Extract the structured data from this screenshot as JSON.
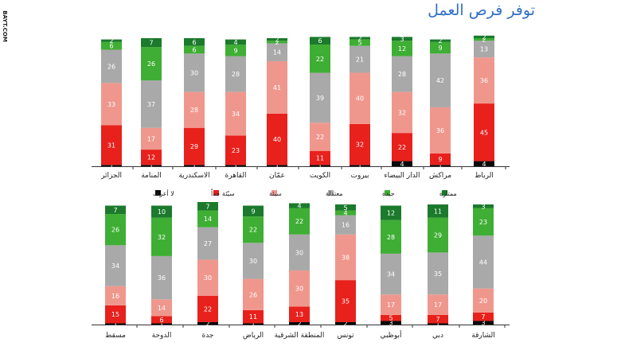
{
  "title": "توفر فرص العمل",
  "watermark": "BAYT.COM",
  "colors": {
    "dont_know": "#0a0a0a",
    "very_bad": "#e8211c",
    "bad": "#f0978d",
    "average": "#a9a9a9",
    "good": "#3fae34",
    "excellent": "#1b7a2c"
  },
  "chart_data": [
    {
      "type": "bar",
      "stacked": true,
      "ylim": [
        0,
        100
      ],
      "categories": [
        "الرباط",
        "مراكش",
        "الدار البيضاء",
        "بيروت",
        "الكويت",
        "عمّان",
        "القاهرة",
        "الاسكندرية",
        "المنامة",
        "الجزائر"
      ],
      "series": [
        {
          "name": "لا أعرف",
          "color": "#0a0a0a",
          "values": [
            4,
            1,
            4,
            1,
            1,
            1,
            1,
            1,
            1,
            1
          ]
        },
        {
          "name": "سيّئة جداً",
          "color": "#e8211c",
          "values": [
            45,
            9,
            22,
            32,
            11,
            40,
            23,
            29,
            12,
            31
          ]
        },
        {
          "name": "سيئة",
          "color": "#f0978d",
          "values": [
            36,
            36,
            32,
            40,
            22,
            41,
            34,
            28,
            17,
            33
          ]
        },
        {
          "name": "معتدلة",
          "color": "#a9a9a9",
          "values": [
            13,
            42,
            28,
            21,
            39,
            14,
            28,
            30,
            37,
            26
          ]
        },
        {
          "name": "جيدة",
          "color": "#3fae34",
          "values": [
            2,
            9,
            12,
            5,
            22,
            2,
            9,
            6,
            26,
            6
          ]
        },
        {
          "name": "ممتازة",
          "color": "#1b7a2c",
          "values": [
            2,
            2,
            3,
            2,
            6,
            2,
            4,
            6,
            7,
            2
          ]
        }
      ],
      "legend_position": "bottom"
    },
    {
      "type": "bar",
      "stacked": true,
      "ylim": [
        0,
        100
      ],
      "categories": [
        "الشارقة",
        "دبي",
        "أبوظبي",
        "تونس",
        "المنطقة الشرقية",
        "الرياض",
        "جدة",
        "الدوحة",
        "مسقط"
      ],
      "series": [
        {
          "name": "لا أعرف",
          "color": "#0a0a0a",
          "values": [
            3,
            1,
            3,
            2,
            2,
            1,
            2,
            1,
            1
          ]
        },
        {
          "name": "سيّئة جداً",
          "color": "#e8211c",
          "values": [
            7,
            7,
            5,
            35,
            13,
            11,
            22,
            6,
            15
          ]
        },
        {
          "name": "سيئة",
          "color": "#f0978d",
          "values": [
            20,
            17,
            17,
            38,
            30,
            26,
            30,
            14,
            16
          ]
        },
        {
          "name": "معتدلة",
          "color": "#a9a9a9",
          "values": [
            44,
            35,
            34,
            16,
            30,
            30,
            27,
            36,
            34
          ]
        },
        {
          "name": "جيدة",
          "color": "#3fae34",
          "values": [
            23,
            29,
            28,
            4,
            22,
            22,
            14,
            32,
            26
          ]
        },
        {
          "name": "ممتازة",
          "color": "#1b7a2c",
          "values": [
            3,
            11,
            12,
            5,
            4,
            9,
            7,
            10,
            7
          ]
        }
      ]
    }
  ],
  "legend": [
    {
      "label": "ممتازة",
      "color": "#1b7a2c"
    },
    {
      "label": "جيدة",
      "color": "#3fae34"
    },
    {
      "label": "معتدلة",
      "color": "#a9a9a9"
    },
    {
      "label": "سيئة",
      "color": "#f0978d"
    },
    {
      "label": "سيّئة جداً",
      "color": "#e8211c"
    },
    {
      "label": "لا أعرف",
      "color": "#0a0a0a"
    }
  ]
}
